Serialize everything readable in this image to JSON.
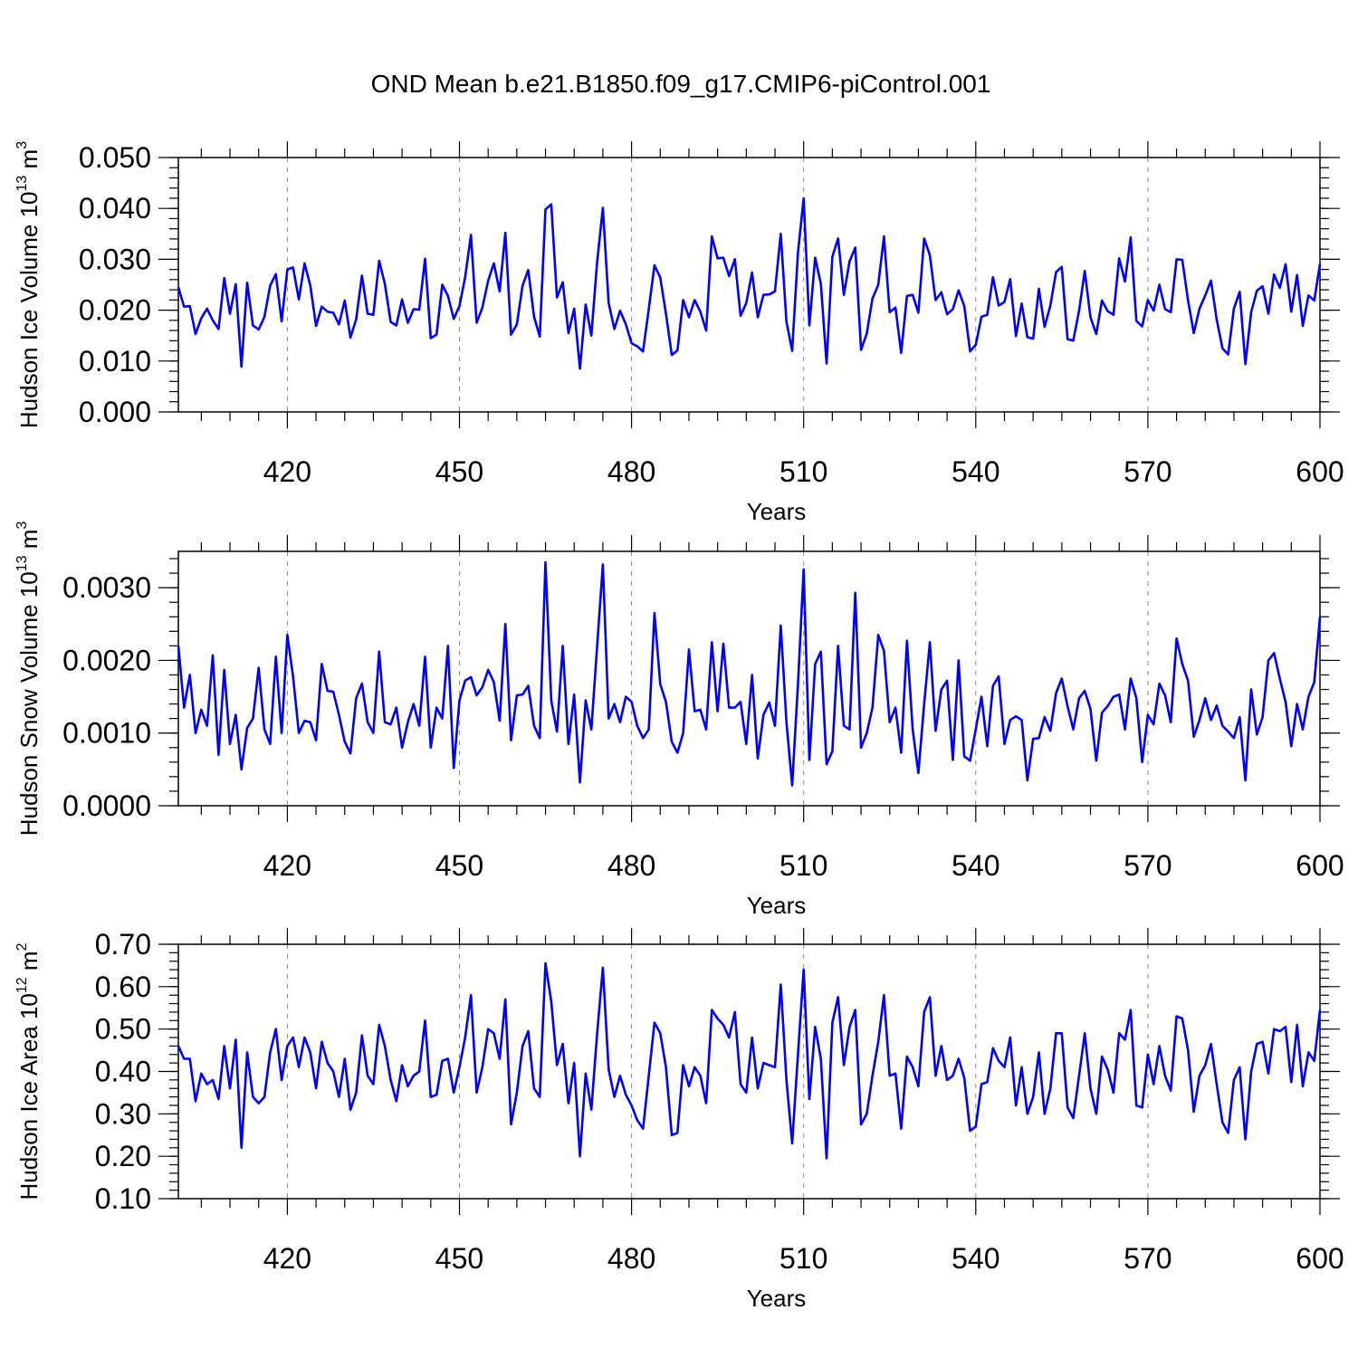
{
  "title": "OND Mean b.e21.B1850.f09_g17.CMIP6-piControl.001",
  "series_color": "#0000ff",
  "chart_data": [
    {
      "type": "line",
      "title": "OND Mean b.e21.B1850.f09_g17.CMIP6-piControl.001",
      "xlabel": "Years",
      "ylabel": "Hudson Ice Volume 10",
      "ylabel_exp": "13",
      "ylabel_unit": " m",
      "ylabel_unit_exp": "3",
      "xlim": [
        401,
        600
      ],
      "ylim": [
        0.0,
        0.05
      ],
      "x_ticks": [
        "420",
        "450",
        "480",
        "510",
        "540",
        "570",
        "600"
      ],
      "y_ticks": [
        "0.000",
        "0.010",
        "0.020",
        "0.030",
        "0.040",
        "0.050"
      ],
      "grid": "vertical dashed at major x ticks",
      "x_start": 401,
      "values": [
        0.0245,
        0.0207,
        0.0208,
        0.0153,
        0.0184,
        0.0203,
        0.018,
        0.0163,
        0.0263,
        0.0193,
        0.0251,
        0.0089,
        0.0254,
        0.017,
        0.0162,
        0.0187,
        0.0248,
        0.0271,
        0.0178,
        0.028,
        0.0284,
        0.0221,
        0.0292,
        0.0249,
        0.0169,
        0.0207,
        0.0197,
        0.0195,
        0.0172,
        0.0219,
        0.0146,
        0.0182,
        0.0268,
        0.0193,
        0.0191,
        0.0297,
        0.0252,
        0.0177,
        0.017,
        0.0221,
        0.0175,
        0.0202,
        0.0201,
        0.0301,
        0.0145,
        0.0152,
        0.025,
        0.0228,
        0.0183,
        0.0208,
        0.0265,
        0.0348,
        0.0175,
        0.0205,
        0.0258,
        0.0292,
        0.0237,
        0.0352,
        0.0152,
        0.0172,
        0.0248,
        0.0279,
        0.0187,
        0.0148,
        0.0398,
        0.0408,
        0.0225,
        0.0255,
        0.0155,
        0.0203,
        0.0085,
        0.0211,
        0.015,
        0.0295,
        0.0401,
        0.0214,
        0.0163,
        0.0199,
        0.0172,
        0.0135,
        0.0129,
        0.0119,
        0.0202,
        0.0288,
        0.0264,
        0.0193,
        0.0112,
        0.0121,
        0.022,
        0.0186,
        0.022,
        0.0197,
        0.016,
        0.0345,
        0.0302,
        0.0303,
        0.0267,
        0.03,
        0.0189,
        0.0214,
        0.0274,
        0.0186,
        0.023,
        0.0231,
        0.0237,
        0.035,
        0.0177,
        0.012,
        0.0313,
        0.042,
        0.017,
        0.0303,
        0.0252,
        0.0095,
        0.0305,
        0.0341,
        0.023,
        0.0296,
        0.0323,
        0.0122,
        0.0154,
        0.0223,
        0.025,
        0.0345,
        0.0196,
        0.0205,
        0.0116,
        0.0228,
        0.023,
        0.0195,
        0.0341,
        0.0308,
        0.022,
        0.0235,
        0.0192,
        0.0202,
        0.0239,
        0.0208,
        0.0119,
        0.0132,
        0.0187,
        0.0191,
        0.0265,
        0.0209,
        0.0216,
        0.0261,
        0.0149,
        0.0213,
        0.0147,
        0.0144,
        0.0242,
        0.0167,
        0.0209,
        0.0275,
        0.0285,
        0.0143,
        0.014,
        0.0199,
        0.0277,
        0.0186,
        0.0153,
        0.0219,
        0.0198,
        0.0191,
        0.0302,
        0.0256,
        0.0343,
        0.0179,
        0.0168,
        0.022,
        0.0199,
        0.025,
        0.0202,
        0.0196,
        0.03,
        0.0299,
        0.0219,
        0.0155,
        0.0203,
        0.0229,
        0.0258,
        0.0182,
        0.0125,
        0.0113,
        0.0203,
        0.0236,
        0.0094,
        0.0196,
        0.0238,
        0.0247,
        0.0193,
        0.027,
        0.0244,
        0.029,
        0.0197,
        0.0269,
        0.0169,
        0.0229,
        0.0219,
        0.0291
      ]
    },
    {
      "type": "line",
      "xlabel": "Years",
      "ylabel": "Hudson Snow Volume 10",
      "ylabel_exp": "13",
      "ylabel_unit": " m",
      "ylabel_unit_exp": "3",
      "xlim": [
        401,
        600
      ],
      "ylim": [
        0.0,
        0.0035
      ],
      "x_ticks": [
        "420",
        "450",
        "480",
        "510",
        "540",
        "570",
        "600"
      ],
      "y_ticks": [
        "0.0000",
        "0.0010",
        "0.0020",
        "0.0030"
      ],
      "grid": "vertical dashed at major x ticks",
      "x_start": 401,
      "values": [
        0.0022,
        0.00135,
        0.0018,
        0.001,
        0.00132,
        0.0011,
        0.00207,
        0.0007,
        0.00187,
        0.00085,
        0.00125,
        0.0005,
        0.00107,
        0.0012,
        0.0019,
        0.00105,
        0.00085,
        0.00205,
        0.001,
        0.00235,
        0.00178,
        0.001,
        0.00117,
        0.00115,
        0.0009,
        0.00195,
        0.00158,
        0.00157,
        0.00125,
        0.00088,
        0.00072,
        0.00148,
        0.00168,
        0.00115,
        0.001,
        0.00212,
        0.00115,
        0.00112,
        0.00135,
        0.0008,
        0.00115,
        0.0014,
        0.0011,
        0.00205,
        0.0008,
        0.00135,
        0.0012,
        0.0022,
        0.00052,
        0.00145,
        0.00172,
        0.00177,
        0.00152,
        0.00163,
        0.00187,
        0.0017,
        0.00117,
        0.0025,
        0.0009,
        0.00152,
        0.00153,
        0.00165,
        0.0011,
        0.00093,
        0.00335,
        0.00145,
        0.00102,
        0.0022,
        0.00085,
        0.00153,
        0.00032,
        0.00145,
        0.00105,
        0.0022,
        0.00332,
        0.0012,
        0.0014,
        0.00115,
        0.0015,
        0.00143,
        0.0011,
        0.00093,
        0.00105,
        0.00265,
        0.00167,
        0.00143,
        0.00088,
        0.00073,
        0.001,
        0.00215,
        0.0013,
        0.00132,
        0.00105,
        0.00225,
        0.0013,
        0.00223,
        0.00135,
        0.00135,
        0.00143,
        0.00085,
        0.0018,
        0.00065,
        0.00125,
        0.00142,
        0.0011,
        0.00248,
        0.00115,
        0.00028,
        0.00167,
        0.00325,
        0.00063,
        0.00195,
        0.00212,
        0.00057,
        0.00075,
        0.0022,
        0.0011,
        0.00105,
        0.00293,
        0.0008,
        0.001,
        0.00135,
        0.00235,
        0.00213,
        0.00115,
        0.00135,
        0.00073,
        0.00227,
        0.00105,
        0.00045,
        0.0014,
        0.00225,
        0.00103,
        0.0016,
        0.00172,
        0.00063,
        0.002,
        0.00068,
        0.00062,
        0.00105,
        0.0015,
        0.00082,
        0.00165,
        0.00178,
        0.00085,
        0.00118,
        0.00123,
        0.00118,
        0.00035,
        0.00092,
        0.00093,
        0.00122,
        0.00103,
        0.00155,
        0.00175,
        0.00137,
        0.00105,
        0.00148,
        0.00158,
        0.00133,
        0.00062,
        0.00128,
        0.00137,
        0.0015,
        0.00153,
        0.00105,
        0.00175,
        0.00148,
        0.0006,
        0.00125,
        0.00112,
        0.00168,
        0.00152,
        0.00115,
        0.0023,
        0.00195,
        0.00172,
        0.00095,
        0.00118,
        0.00148,
        0.00118,
        0.00138,
        0.0011,
        0.00102,
        0.00093,
        0.00122,
        0.00035,
        0.0016,
        0.00098,
        0.00122,
        0.002,
        0.0021,
        0.00175,
        0.00143,
        0.00082,
        0.0014,
        0.00105,
        0.0015,
        0.0017,
        0.0026
      ]
    },
    {
      "type": "line",
      "xlabel": "Years",
      "ylabel": "Hudson Ice Area 10",
      "ylabel_exp": "12",
      "ylabel_unit": " m",
      "ylabel_unit_exp": "2",
      "xlim": [
        401,
        600
      ],
      "ylim": [
        0.1,
        0.7
      ],
      "x_ticks": [
        "420",
        "450",
        "480",
        "510",
        "540",
        "570",
        "600"
      ],
      "y_ticks": [
        "0.10",
        "0.20",
        "0.30",
        "0.40",
        "0.50",
        "0.60",
        "0.70"
      ],
      "grid": "vertical dashed at major x ticks",
      "x_start": 401,
      "values": [
        0.46,
        0.43,
        0.43,
        0.33,
        0.395,
        0.37,
        0.38,
        0.335,
        0.46,
        0.36,
        0.475,
        0.22,
        0.445,
        0.34,
        0.325,
        0.34,
        0.445,
        0.5,
        0.38,
        0.46,
        0.48,
        0.41,
        0.48,
        0.445,
        0.36,
        0.47,
        0.42,
        0.4,
        0.34,
        0.43,
        0.31,
        0.35,
        0.485,
        0.39,
        0.37,
        0.51,
        0.46,
        0.38,
        0.33,
        0.415,
        0.365,
        0.39,
        0.4,
        0.52,
        0.34,
        0.345,
        0.425,
        0.43,
        0.35,
        0.41,
        0.48,
        0.58,
        0.35,
        0.41,
        0.5,
        0.49,
        0.43,
        0.57,
        0.275,
        0.35,
        0.46,
        0.495,
        0.36,
        0.34,
        0.655,
        0.565,
        0.415,
        0.465,
        0.325,
        0.42,
        0.2,
        0.395,
        0.31,
        0.49,
        0.645,
        0.405,
        0.34,
        0.39,
        0.345,
        0.32,
        0.285,
        0.265,
        0.39,
        0.515,
        0.49,
        0.41,
        0.25,
        0.255,
        0.415,
        0.365,
        0.41,
        0.39,
        0.325,
        0.545,
        0.525,
        0.51,
        0.48,
        0.54,
        0.37,
        0.35,
        0.48,
        0.36,
        0.42,
        0.415,
        0.41,
        0.605,
        0.38,
        0.23,
        0.44,
        0.64,
        0.335,
        0.505,
        0.43,
        0.195,
        0.515,
        0.575,
        0.415,
        0.505,
        0.545,
        0.275,
        0.3,
        0.39,
        0.47,
        0.58,
        0.39,
        0.395,
        0.265,
        0.435,
        0.41,
        0.365,
        0.54,
        0.575,
        0.39,
        0.46,
        0.38,
        0.39,
        0.43,
        0.385,
        0.26,
        0.27,
        0.37,
        0.375,
        0.455,
        0.425,
        0.41,
        0.48,
        0.32,
        0.41,
        0.3,
        0.34,
        0.445,
        0.3,
        0.36,
        0.49,
        0.49,
        0.315,
        0.29,
        0.39,
        0.49,
        0.36,
        0.3,
        0.435,
        0.405,
        0.35,
        0.49,
        0.475,
        0.545,
        0.32,
        0.315,
        0.44,
        0.37,
        0.46,
        0.39,
        0.355,
        0.53,
        0.525,
        0.45,
        0.305,
        0.39,
        0.415,
        0.465,
        0.37,
        0.28,
        0.255,
        0.38,
        0.41,
        0.24,
        0.4,
        0.465,
        0.47,
        0.395,
        0.5,
        0.495,
        0.505,
        0.375,
        0.51,
        0.365,
        0.445,
        0.425,
        0.545
      ]
    }
  ]
}
